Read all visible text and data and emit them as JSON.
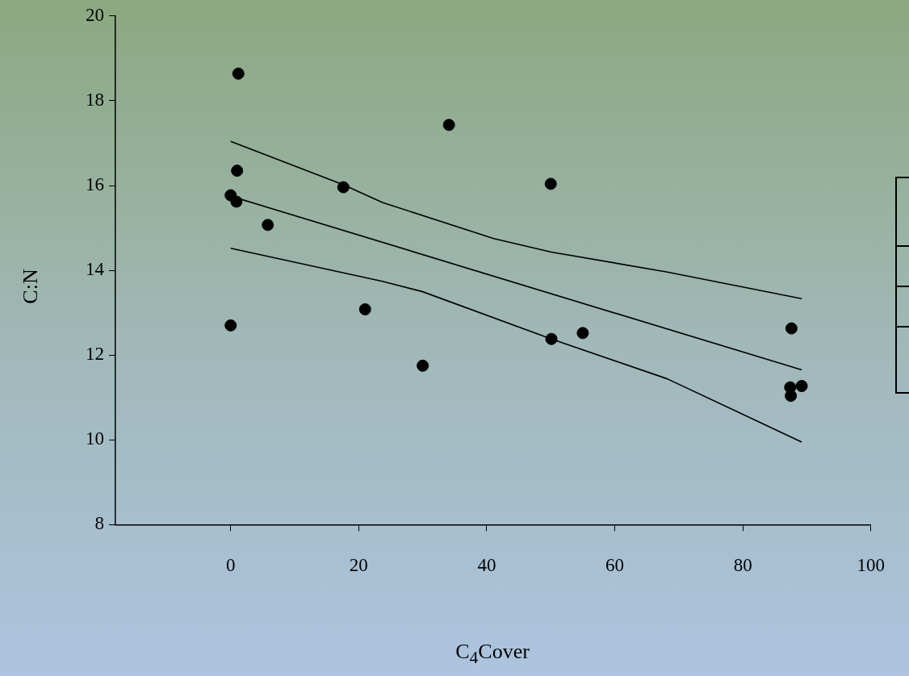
{
  "chart_data": {
    "type": "scatter",
    "xlabel": "C$_{4}$Cover",
    "ylabel": "C:N",
    "xlim": [
      -18,
      100
    ],
    "xticks": [
      0,
      20,
      40,
      60,
      80,
      100
    ],
    "ylim": [
      8,
      20
    ],
    "yticks": [
      8,
      10,
      12,
      14,
      16,
      18,
      20
    ],
    "grid": false,
    "legend": false,
    "marker": "circle",
    "series": [
      {
        "color": "#000000",
        "x": [
          1.2,
          0,
          0.9,
          1,
          5.8,
          17.6,
          0,
          21,
          30,
          34.1,
          50,
          50.1,
          55,
          87.6,
          87.4,
          87.5,
          89.2
        ],
        "values": [
          18.64,
          15.77,
          15.62,
          16.35,
          15.07,
          15.96,
          12.7,
          13.08,
          11.75,
          17.43,
          16.04,
          12.38,
          12.52,
          12.63,
          11.24,
          11.04,
          11.27
        ]
      },
      {
        "type": "line",
        "color": "#000000",
        "marker": "none",
        "x": [
          0,
          89.2
        ],
        "values": [
          15.75,
          11.65
        ]
      },
      {
        "type": "line",
        "color": "#000000",
        "marker": "none",
        "x": [
          0,
          17.6,
          23.7,
          41.1,
          50.1,
          68.2,
          89.2
        ],
        "values": [
          17.04,
          16.02,
          15.6,
          14.75,
          14.43,
          13.96,
          13.33
        ]
      },
      {
        "type": "line",
        "color": "#000000",
        "marker": "none",
        "x": [
          0,
          23.7,
          29.9,
          50.1,
          68.2,
          89.2
        ],
        "values": [
          14.52,
          13.74,
          13.5,
          12.38,
          11.44,
          9.95
        ]
      }
    ]
  }
}
